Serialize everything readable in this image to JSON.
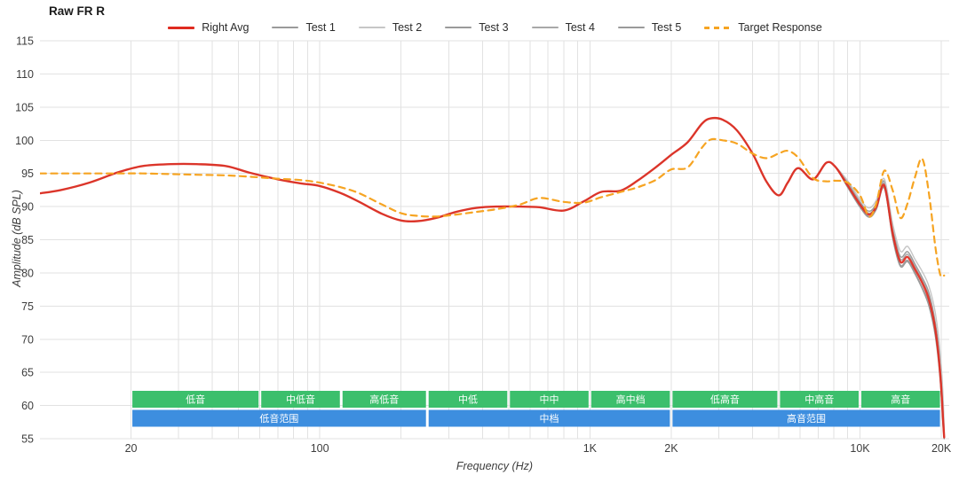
{
  "title": "Raw FR R",
  "axes": {
    "x_label": "Frequency (Hz)",
    "y_label": "Amplitude (dB SPL)",
    "x_ticks": [
      {
        "label": "20",
        "f": 20
      },
      {
        "label": "100",
        "f": 100
      },
      {
        "label": "1K",
        "f": 1000
      },
      {
        "label": "2K",
        "f": 2000
      },
      {
        "label": "10K",
        "f": 10000
      },
      {
        "label": "20K",
        "f": 20000
      }
    ],
    "x_gridlines": [
      20,
      30,
      40,
      50,
      60,
      70,
      80,
      90,
      100,
      200,
      300,
      400,
      500,
      600,
      700,
      800,
      900,
      1000,
      2000,
      3000,
      4000,
      5000,
      6000,
      7000,
      8000,
      9000,
      10000,
      20000
    ],
    "y_ticks": [
      115,
      110,
      105,
      100,
      95,
      90,
      85,
      80,
      75,
      70,
      65,
      60,
      55
    ]
  },
  "chart_data": {
    "type": "line",
    "x_scale": "log",
    "x_unit": "Hz",
    "y_unit": "dB SPL",
    "x_range_hz": [
      9.2,
      21400
    ],
    "ylim": [
      55,
      115
    ],
    "grid": true,
    "legend_position": "top-center",
    "freqs": [
      9.2,
      11,
      14,
      18,
      22,
      28,
      35,
      45,
      55,
      70,
      85,
      100,
      120,
      140,
      170,
      200,
      230,
      270,
      320,
      380,
      450,
      550,
      650,
      800,
      950,
      1100,
      1300,
      1500,
      1750,
      2000,
      2300,
      2600,
      2800,
      3100,
      3500,
      4000,
      4500,
      5000,
      5400,
      5900,
      6700,
      7500,
      8100,
      9000,
      10000,
      10800,
      11500,
      12300,
      13200,
      14100,
      15000,
      16000,
      17000,
      18000,
      19000,
      19800,
      20300,
      20500
    ],
    "draw_order": [
      1,
      2,
      3,
      4,
      5,
      0,
      6
    ],
    "series": [
      {
        "name": "Right Avg",
        "color": "#df2b20",
        "style": "solid",
        "width": 2.4,
        "values": [
          92.0,
          92.5,
          93.6,
          95.2,
          96.1,
          96.4,
          96.4,
          96.1,
          95.1,
          94.1,
          93.5,
          93.1,
          92.0,
          90.7,
          88.9,
          87.9,
          87.8,
          88.3,
          89.2,
          89.8,
          90.0,
          90.0,
          89.9,
          89.4,
          90.8,
          92.2,
          92.4,
          93.9,
          95.9,
          97.8,
          99.7,
          102.5,
          103.3,
          103.1,
          101.5,
          98.0,
          93.8,
          91.7,
          93.6,
          95.8,
          94.1,
          96.6,
          96.0,
          93.2,
          90.3,
          88.8,
          90.0,
          93.2,
          86.0,
          81.7,
          82.4,
          80.5,
          78.5,
          76.0,
          71.5,
          65.0,
          58.0,
          55.2
        ]
      },
      {
        "name": "Test 1",
        "color": "#9a9a9a",
        "style": "solid",
        "width": 1.4,
        "values": [
          92.0,
          92.5,
          93.6,
          95.2,
          96.1,
          96.4,
          96.4,
          96.1,
          95.1,
          94.1,
          93.5,
          93.1,
          92.0,
          90.7,
          88.9,
          87.9,
          87.8,
          88.3,
          89.2,
          89.8,
          90.0,
          90.0,
          89.9,
          89.4,
          90.8,
          92.2,
          92.4,
          93.9,
          95.9,
          97.8,
          99.7,
          102.5,
          103.3,
          103.1,
          101.5,
          98.0,
          93.8,
          91.7,
          93.6,
          95.8,
          94.1,
          96.6,
          96.0,
          93.6,
          90.7,
          89.3,
          90.5,
          93.8,
          86.8,
          82.5,
          83.2,
          81.3,
          79.3,
          77.0,
          72.5,
          66.5,
          60.0,
          55.4
        ]
      },
      {
        "name": "Test 2",
        "color": "#c6c6c6",
        "style": "solid",
        "width": 1.4,
        "values": [
          92.0,
          92.5,
          93.6,
          95.2,
          96.1,
          96.4,
          96.4,
          96.1,
          95.1,
          94.1,
          93.5,
          93.1,
          92.0,
          90.7,
          88.9,
          87.9,
          87.8,
          88.3,
          89.2,
          89.8,
          90.0,
          90.0,
          89.9,
          89.4,
          90.8,
          92.2,
          92.4,
          93.9,
          95.9,
          97.8,
          99.7,
          102.5,
          103.3,
          103.1,
          101.5,
          98.0,
          93.8,
          91.7,
          93.6,
          95.8,
          94.1,
          96.6,
          96.0,
          93.9,
          91.1,
          89.8,
          91.0,
          94.2,
          87.5,
          83.3,
          84.0,
          82.0,
          80.2,
          78.0,
          74.0,
          68.0,
          61.5,
          55.8
        ]
      },
      {
        "name": "Test 3",
        "color": "#9a9a9a",
        "style": "solid",
        "width": 1.4,
        "values": [
          92.0,
          92.5,
          93.6,
          95.2,
          96.1,
          96.4,
          96.4,
          96.1,
          95.1,
          94.1,
          93.5,
          93.1,
          92.0,
          90.7,
          88.9,
          87.9,
          87.8,
          88.3,
          89.2,
          89.8,
          90.0,
          90.0,
          89.9,
          89.4,
          90.8,
          92.2,
          92.4,
          93.9,
          95.9,
          97.8,
          99.7,
          102.5,
          103.3,
          103.1,
          101.5,
          98.0,
          93.8,
          91.7,
          93.6,
          95.8,
          94.1,
          96.6,
          96.0,
          92.9,
          89.9,
          88.4,
          89.6,
          92.8,
          85.3,
          81.0,
          81.7,
          79.8,
          77.6,
          75.0,
          70.5,
          64.0,
          57.0,
          55.0
        ]
      },
      {
        "name": "Test 4",
        "color": "#a8a8a8",
        "style": "solid",
        "width": 1.4,
        "values": [
          92.0,
          92.5,
          93.6,
          95.2,
          96.1,
          96.4,
          96.4,
          96.1,
          95.1,
          94.1,
          93.5,
          93.1,
          92.0,
          90.7,
          88.9,
          87.9,
          87.8,
          88.3,
          89.2,
          89.8,
          90.0,
          90.0,
          89.9,
          89.4,
          90.8,
          92.2,
          92.4,
          93.9,
          95.9,
          97.8,
          99.7,
          102.5,
          103.3,
          103.1,
          101.5,
          98.0,
          93.8,
          91.7,
          93.6,
          95.8,
          94.1,
          96.6,
          96.0,
          93.4,
          90.5,
          89.0,
          90.2,
          93.5,
          86.4,
          82.1,
          82.8,
          80.9,
          78.9,
          76.5,
          72.0,
          65.8,
          59.0,
          55.3
        ]
      },
      {
        "name": "Test 5",
        "color": "#9a9a9a",
        "style": "solid",
        "width": 1.4,
        "values": [
          92.0,
          92.5,
          93.6,
          95.2,
          96.1,
          96.4,
          96.4,
          96.1,
          95.1,
          94.1,
          93.5,
          93.1,
          92.0,
          90.7,
          88.9,
          87.9,
          87.8,
          88.3,
          89.2,
          89.8,
          90.0,
          90.0,
          89.9,
          89.4,
          90.8,
          92.2,
          92.4,
          93.9,
          95.9,
          97.8,
          99.7,
          102.5,
          103.3,
          103.1,
          101.5,
          98.0,
          93.8,
          91.7,
          93.6,
          95.8,
          94.1,
          96.6,
          96.0,
          93.0,
          90.0,
          88.5,
          89.7,
          93.0,
          85.5,
          81.2,
          81.9,
          80.0,
          77.8,
          75.3,
          70.8,
          64.5,
          57.5,
          55.0
        ]
      },
      {
        "name": "Target Response",
        "color": "#f6a422",
        "style": "dashed",
        "width": 2.2,
        "values": [
          95.0,
          95.0,
          95.0,
          95.0,
          95.0,
          94.9,
          94.8,
          94.7,
          94.5,
          94.2,
          94.0,
          93.6,
          92.9,
          92.0,
          90.3,
          89.0,
          88.6,
          88.5,
          88.8,
          89.2,
          89.6,
          90.3,
          91.3,
          90.7,
          90.6,
          91.4,
          92.2,
          92.9,
          94.0,
          95.6,
          95.9,
          98.9,
          100.1,
          100.0,
          99.5,
          98.0,
          97.3,
          98.0,
          98.4,
          97.4,
          94.3,
          93.8,
          93.9,
          93.6,
          91.7,
          88.5,
          90.5,
          95.4,
          92.5,
          88.3,
          90.5,
          94.5,
          97.2,
          92.0,
          84.0,
          79.8,
          79.6,
          79.6
        ]
      }
    ]
  },
  "bands": {
    "green_color": "#3cbf6c",
    "blue_color": "#3d8edf",
    "text_color": "#ffffff",
    "green": [
      {
        "label": "低音",
        "from": 20,
        "to": 60
      },
      {
        "label": "中低音",
        "from": 60,
        "to": 120
      },
      {
        "label": "高低音",
        "from": 120,
        "to": 250
      },
      {
        "label": "中低",
        "from": 250,
        "to": 500
      },
      {
        "label": "中中",
        "from": 500,
        "to": 1000
      },
      {
        "label": "高中档",
        "from": 1000,
        "to": 2000
      },
      {
        "label": "低高音",
        "from": 2000,
        "to": 5000
      },
      {
        "label": "中高音",
        "from": 5000,
        "to": 10000
      },
      {
        "label": "高音",
        "from": 10000,
        "to": 20000
      }
    ],
    "blue": [
      {
        "label": "低音范围",
        "from": 20,
        "to": 250
      },
      {
        "label": "中档",
        "from": 250,
        "to": 2000
      },
      {
        "label": "高音范围",
        "from": 2000,
        "to": 20000
      }
    ]
  },
  "colors": {
    "grid": "#e2e2e2",
    "tick_text": "#3d3d3d"
  }
}
